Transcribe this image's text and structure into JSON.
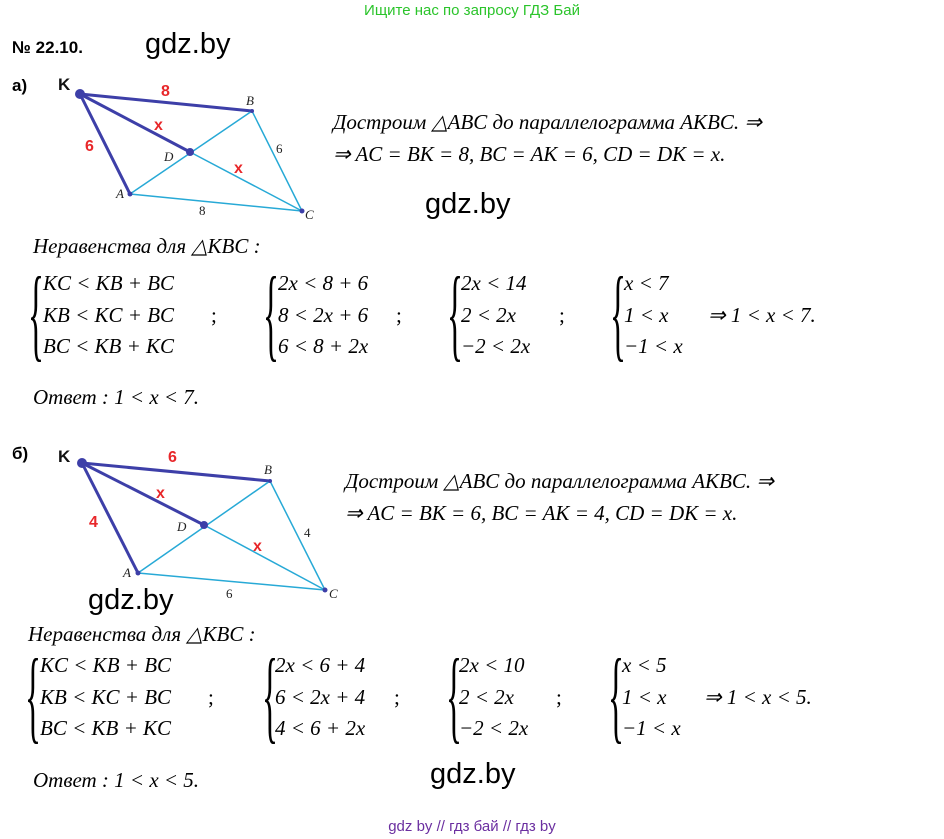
{
  "banner": "Ищите нас по запросу ГДЗ Бай",
  "problem_number": "№ 22.10.",
  "watermark": "gdz.by",
  "part_a": {
    "label": "а)",
    "figure": {
      "K": "K",
      "A": "A",
      "B": "B",
      "C": "C",
      "D": "D",
      "KB": "8",
      "KA": "6",
      "KD": "x",
      "DC": "x",
      "BC": "6",
      "AC": "8"
    },
    "construction_line1": "Достроим  △ABC  до  параллелограмма  AKBC.  ⇒",
    "construction_line2": "⇒   AC = BK = 8,   BC = AK = 6,   CD = DK = x.",
    "inequalities_title": "Неравенства  для  △KBC :",
    "system1": [
      "KC < KB + BC",
      "KB < KC + BC",
      "BC < KB + KC"
    ],
    "system2": [
      "2x < 8 + 6",
      "8 < 2x + 6",
      "6 < 8 + 2x"
    ],
    "system3": [
      "2x < 14",
      "2 < 2x",
      "−2 < 2x"
    ],
    "system4": [
      "x < 7",
      "1 < x",
      "−1 < x"
    ],
    "separator": ";",
    "result": "⇒   1 < x < 7.",
    "answer": "Ответ :   1 < x < 7."
  },
  "part_b": {
    "label": "б)",
    "figure": {
      "K": "K",
      "A": "A",
      "B": "B",
      "C": "C",
      "D": "D",
      "KB": "6",
      "KA": "4",
      "KD": "x",
      "DC": "x",
      "BC": "4",
      "AC": "6"
    },
    "construction_line1": "Достроим  △ABC  до  параллелограмма  AKBC.  ⇒",
    "construction_line2": "⇒   AC = BK = 6,   BC = AK = 4,   CD = DK = x.",
    "inequalities_title": "Неравенства  для  △KBC :",
    "system1": [
      "KC < KB + BC",
      "KB < KC + BC",
      "BC < KB + KC"
    ],
    "system2": [
      "2x < 6 + 4",
      "6 < 2x + 4",
      "4 < 6 + 2x"
    ],
    "system3": [
      "2x < 10",
      "2 < 2x",
      "−2 < 2x"
    ],
    "system4": [
      "x < 5",
      "1 < x",
      "−1 < x"
    ],
    "separator": ";",
    "result": "⇒   1 < x < 5.",
    "answer": "Ответ :   1 < x < 5."
  },
  "footer": "gdz by  //  гдз бай  //  гдз by",
  "colors": {
    "banner": "#2bc42b",
    "footer": "#6b2fa0",
    "figure_dark": "#3d3fa8",
    "figure_light": "#27a9d6",
    "figure_red": "#e8272a"
  }
}
